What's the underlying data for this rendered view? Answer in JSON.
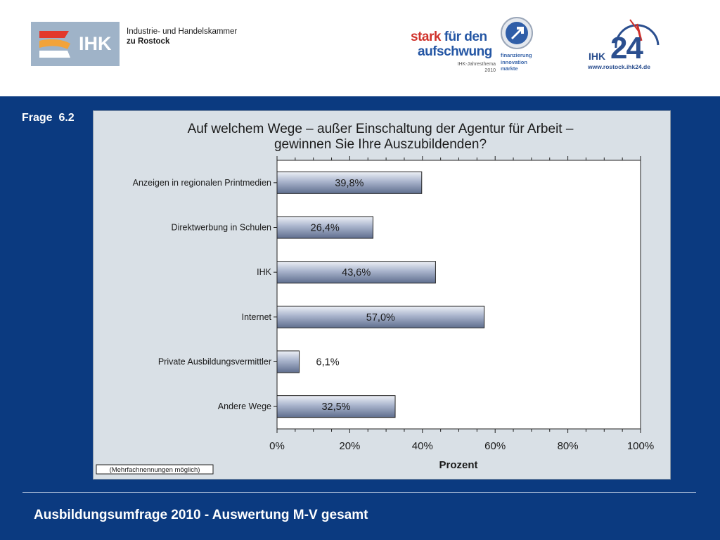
{
  "header": {
    "ihk_logo_text": "IHK",
    "ihk_org_line1": "Industrie- und Handelskammer",
    "ihk_org_line2": "zu Rostock",
    "campaign": {
      "word1": "stark",
      "word2": " für den",
      "word3": "aufschwung",
      "jahresthema_line1": "IHK-Jahresthema",
      "jahresthema_line2": "2010",
      "sub_line1": "finanzierung",
      "sub_line2": "innovation",
      "sub_line3": "märkte"
    },
    "ihk24": {
      "small": "IHK",
      "big": "24",
      "url": "www.rostock.ihk24.de"
    }
  },
  "slide": {
    "frage_label": "Frage  6.2",
    "footer_title": "Ausbildungsumfrage 2010 - Auswertung M-V gesamt"
  },
  "chart_data": {
    "type": "bar",
    "orientation": "horizontal",
    "title_line1": "Auf welchem Wege – außer Einschaltung der Agentur für Arbeit –",
    "title_line2": "gewinnen Sie Ihre Auszubildenden?",
    "categories": [
      "Anzeigen in regionalen Printmedien",
      "Direktwerbung in Schulen",
      "IHK",
      "Internet",
      "Private Ausbildungsvermittler",
      "Andere Wege"
    ],
    "values": [
      39.8,
      26.4,
      43.6,
      57.0,
      6.1,
      32.5
    ],
    "data_labels": [
      "39,8%",
      "26,4%",
      "43,6%",
      "57,0%",
      "6,1%",
      "32,5%"
    ],
    "xlabel": "Prozent",
    "xlim": [
      0,
      100
    ],
    "x_ticks": [
      "0%",
      "20%",
      "40%",
      "60%",
      "80%",
      "100%"
    ],
    "note": "(Mehrfachnennungen möglich)",
    "grid": false,
    "bar_color": "#a9b4cc"
  }
}
